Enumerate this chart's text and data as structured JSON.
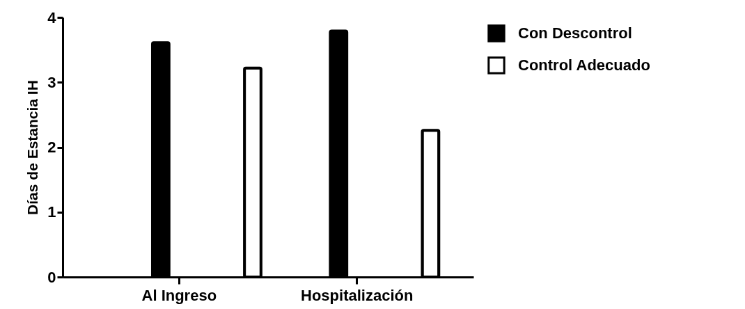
{
  "chart_data": {
    "type": "bar",
    "ylabel": "Días de Estancia IH",
    "categories": [
      "Al Ingreso",
      "Hospitalización"
    ],
    "series": [
      {
        "name": "Con Descontrol",
        "color": "#000000",
        "values": [
          3.61,
          3.79
        ]
      },
      {
        "name": "Control Adecuado",
        "color": "#ffffff",
        "values": [
          3.22,
          2.26
        ]
      }
    ],
    "ylim": [
      0,
      4
    ],
    "yticks": [
      0,
      1,
      2,
      3,
      4
    ],
    "legend": "top right"
  }
}
